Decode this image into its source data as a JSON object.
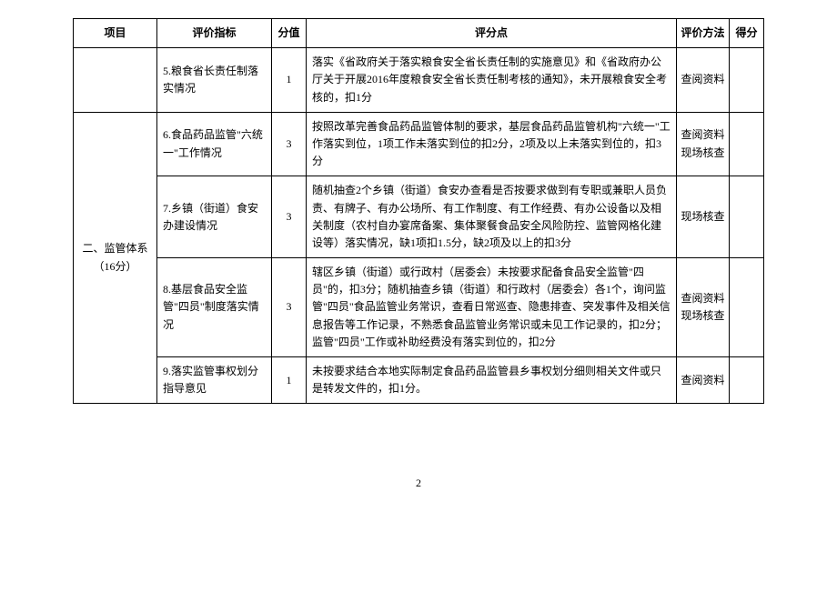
{
  "headers": {
    "project": "项目",
    "indicator": "评价指标",
    "score": "分值",
    "point": "评分点",
    "method": "评价方法",
    "result": "得分"
  },
  "rows": [
    {
      "project": "",
      "indicator": "5.粮食省长责任制落实情况",
      "score": "1",
      "point": "落实《省政府关于落实粮食安全省长责任制的实施意见》和《省政府办公厅关于开展2016年度粮食安全省长责任制考核的通知》，未开展粮食安全考核的，扣1分",
      "method": "查阅资料"
    },
    {
      "project": "二、监管体系（16分）",
      "indicator": "6.食品药品监管\"六统一\"工作情况",
      "score": "3",
      "point": "按照改革完善食品药品监管体制的要求，基层食品药品监管机构\"六统一\"工作落实到位，1项工作未落实到位的扣2分，2项及以上未落实到位的，扣3分",
      "method": "查阅资料现场核查"
    },
    {
      "indicator": "7.乡镇（街道）食安办建设情况",
      "score": "3",
      "point": "随机抽查2个乡镇（街道）食安办查看是否按要求做到有专职或兼职人员负责、有牌子、有办公场所、有工作制度、有工作经费、有办公设备以及相关制度（农村自办宴席备案、集体聚餐食品安全风险防控、监管网格化建设等）落实情况，缺1项扣1.5分，缺2项及以上的扣3分",
      "method": "现场核查"
    },
    {
      "indicator": "8.基层食品安全监管\"四员\"制度落实情况",
      "score": "3",
      "point": "辖区乡镇（街道）或行政村（居委会）未按要求配备食品安全监管\"四员\"的，扣3分；随机抽查乡镇（街道）和行政村（居委会）各1个，询问监管\"四员\"食品监管业务常识，查看日常巡查、隐患排查、突发事件及相关信息报告等工作记录，不熟悉食品监管业务常识或未见工作记录的，扣2分；监管\"四员\"工作或补助经费没有落实到位的，扣2分",
      "method": "查阅资料现场核查"
    },
    {
      "indicator": "9.落实监管事权划分指导意见",
      "score": "1",
      "point": "未按要求结合本地实际制定食品药品监管县乡事权划分细则相关文件或只是转发文件的，扣1分。",
      "method": "查阅资料"
    }
  ],
  "pageNumber": "2"
}
